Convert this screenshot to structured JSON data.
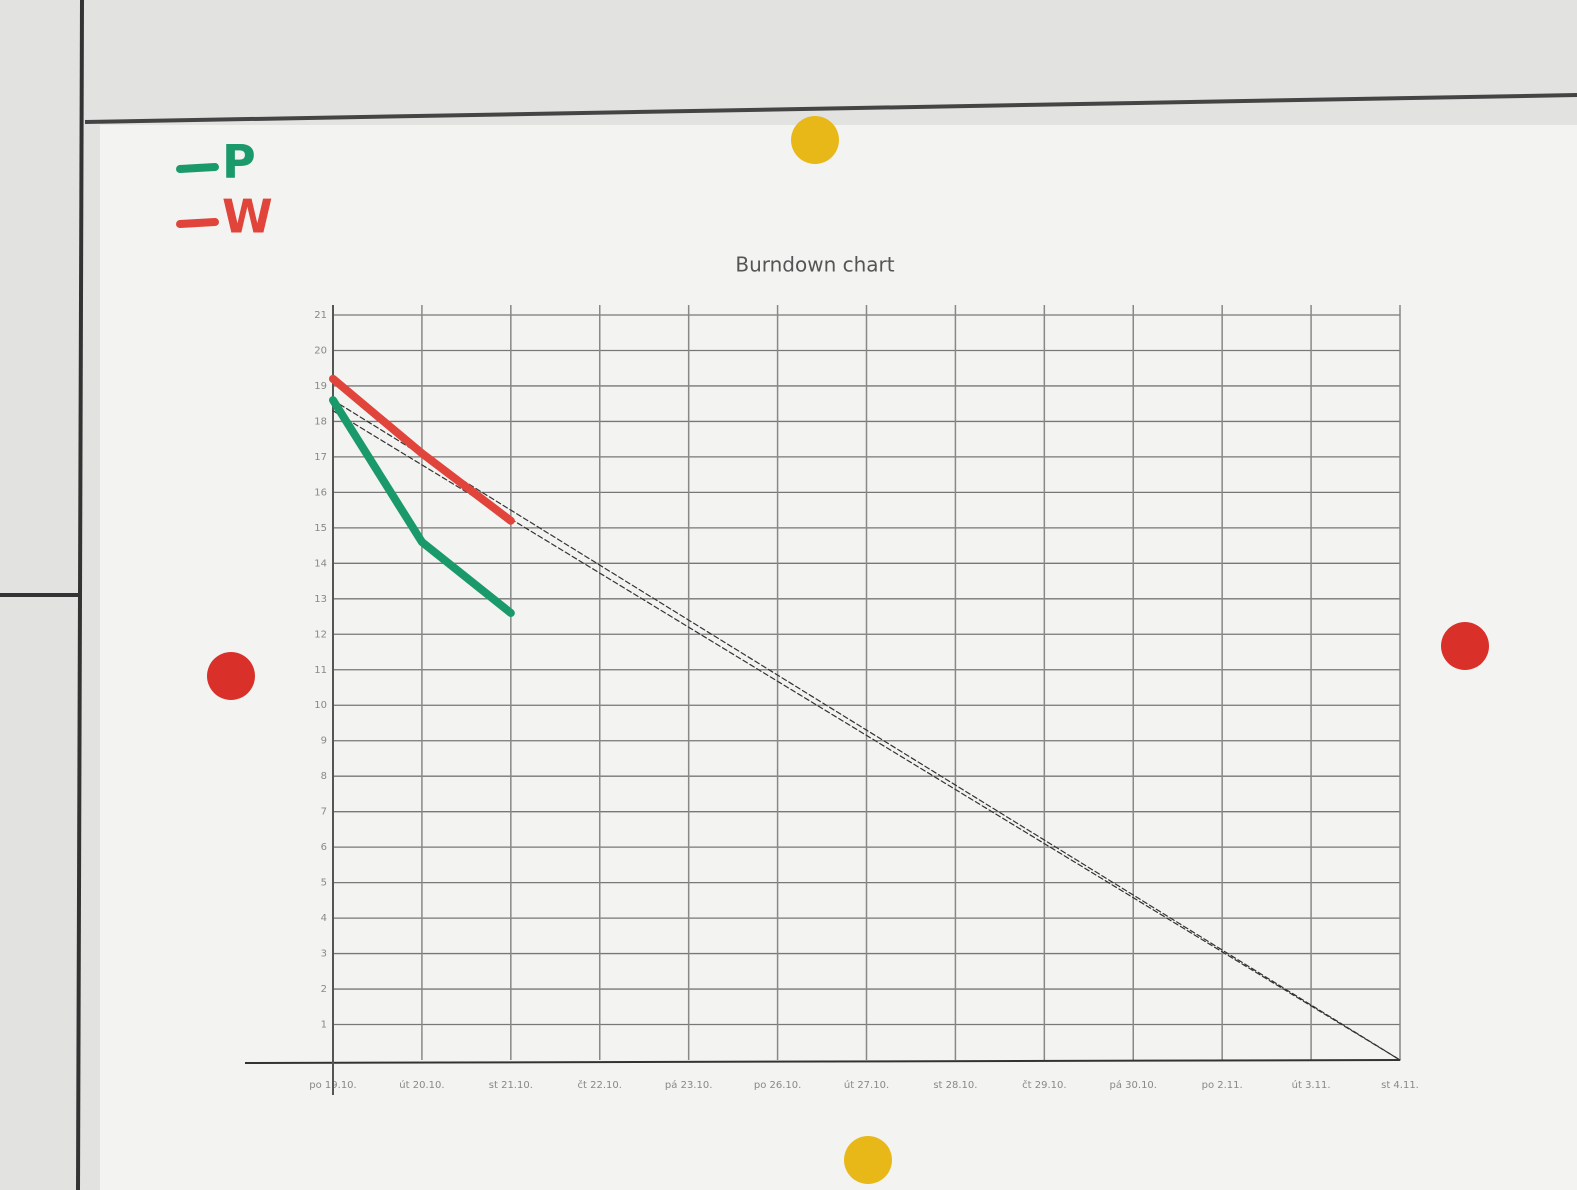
{
  "chart_data": {
    "type": "line",
    "title": "Burndown chart",
    "categories": [
      "po 19.10.",
      "út 20.10.",
      "st 21.10.",
      "čt 22.10.",
      "pá 23.10.",
      "po 26.10.",
      "út 27.10.",
      "st 28.10.",
      "čt 29.10.",
      "pá 30.10.",
      "po 2.11.",
      "út 3.11.",
      "st 4.11."
    ],
    "ylim": [
      0,
      21
    ],
    "yticks": [
      1,
      2,
      3,
      4,
      5,
      6,
      7,
      8,
      9,
      10,
      11,
      12,
      13,
      14,
      15,
      16,
      17,
      18,
      19,
      20,
      21
    ],
    "grid": true,
    "series": [
      {
        "color": "#333333",
        "dashed": true,
        "values": [
          18.6,
          17.05,
          15.5,
          13.95,
          12.4,
          10.85,
          9.3,
          7.75,
          6.2,
          4.65,
          3.1,
          1.55,
          0
        ]
      },
      {
        "color": "#333333",
        "dashed": true,
        "values": [
          18.3,
          16.775,
          15.25,
          13.725,
          12.2,
          10.675,
          9.15,
          7.625,
          6.1,
          4.575,
          3.05,
          1.525,
          0
        ]
      },
      {
        "name": "P",
        "color": "#1a9a6a",
        "values": [
          18.6,
          14.6,
          12.6,
          null,
          null,
          null,
          null,
          null,
          null,
          null,
          null,
          null,
          null
        ]
      },
      {
        "name": "W",
        "color": "#e0443a",
        "values": [
          19.2,
          17.1,
          15.2,
          null,
          null,
          null,
          null,
          null,
          null,
          null,
          null,
          null,
          null
        ]
      }
    ]
  }
}
